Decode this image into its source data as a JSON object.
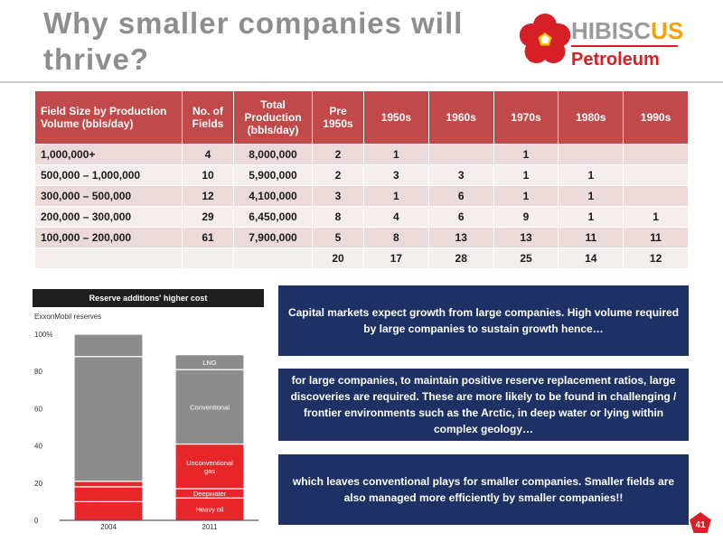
{
  "title": "Why smaller companies will thrive?",
  "logo": {
    "name_main": "HIBISC",
    "name_accent": "US",
    "subtitle": "Petroleum"
  },
  "table": {
    "headers": [
      "Field Size by Production Volume (bbls/day)",
      "No. of Fields",
      "Total Production (bbls/day)",
      "Pre 1950s",
      "1950s",
      "1960s",
      "1970s",
      "1980s",
      "1990s"
    ],
    "rows": [
      [
        "1,000,000+",
        "4",
        "8,000,000",
        "2",
        "1",
        "",
        "1",
        "",
        ""
      ],
      [
        "500,000 – 1,000,000",
        "10",
        "5,900,000",
        "2",
        "3",
        "3",
        "1",
        "1",
        ""
      ],
      [
        "300,000 – 500,000",
        "12",
        "4,100,000",
        "3",
        "1",
        "6",
        "1",
        "1",
        ""
      ],
      [
        "200,000 – 300,000",
        "29",
        "6,450,000",
        "8",
        "4",
        "6",
        "9",
        "1",
        "1"
      ],
      [
        "100,000 – 200,000",
        "61",
        "7,900,000",
        "5",
        "8",
        "13",
        "13",
        "11",
        "11"
      ],
      [
        "",
        "",
        "",
        "20",
        "17",
        "28",
        "25",
        "14",
        "12"
      ]
    ]
  },
  "chart_data": {
    "type": "bar",
    "stacked": true,
    "title": "Reserve additions' higher cost",
    "subtitle": "ExxonMobil reserves",
    "categories": [
      "2004",
      "2011"
    ],
    "ylim": [
      0,
      100
    ],
    "yticks": [
      "0",
      "20",
      "40",
      "60",
      "80",
      "100%"
    ],
    "series": [
      {
        "name": "Heavy oil",
        "color": "#e8262a",
        "values": [
          10,
          12
        ]
      },
      {
        "name": "Deepwater",
        "color": "#e8262a",
        "values": [
          8,
          5
        ]
      },
      {
        "name": "Unconventional gas",
        "color": "#e8262a",
        "values": [
          0,
          24
        ]
      },
      {
        "name": "",
        "color": "#e8262a",
        "values": [
          3,
          0
        ]
      },
      {
        "name": "Conventional",
        "color": "#8c8c8c",
        "values": [
          67,
          40
        ]
      },
      {
        "name": "LNG",
        "color": "#8c8c8c",
        "values": [
          12,
          8
        ]
      }
    ],
    "segment_labels": [
      "Heavy oil",
      "Deepwater",
      "Unconventional gas",
      "",
      "Conventional",
      "LNG"
    ]
  },
  "boxes": [
    "Capital markets expect growth from large companies. High volume required by large companies to sustain growth hence…",
    "for large companies, to maintain positive reserve replacement ratios, large discoveries are required. These are more likely to be found in challenging / frontier environments such as the Arctic, in deep water or lying within complex geology…",
    "which leaves conventional plays for smaller companies. Smaller fields are also managed more efficiently by smaller companies!!"
  ],
  "page_number": "41",
  "colors": {
    "header_red": "#c1494a",
    "box_navy": "#1e3165",
    "logo_red": "#d61f26",
    "logo_yellow": "#f4a20b"
  }
}
